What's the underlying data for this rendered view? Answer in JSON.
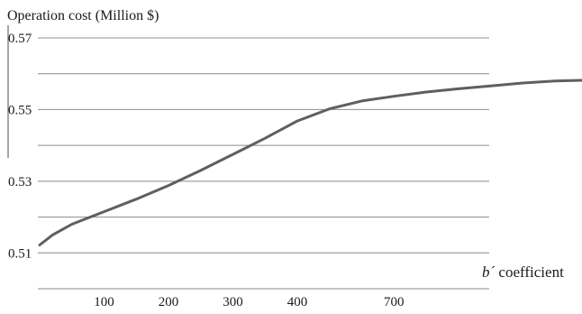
{
  "chart_data": {
    "type": "line",
    "title": "Operation cost (Million $)",
    "xlabel_italic": "b´",
    "xlabel_rest": " coefficient",
    "x_tick_labels": [
      "100",
      "200",
      "300",
      "400",
      "700"
    ],
    "y_ticks": [
      0.51,
      0.53,
      0.55,
      0.57
    ],
    "y_tick_labels": [
      "0.51",
      "0.53",
      "0.55",
      "0.57"
    ],
    "ylim": [
      0.5,
      0.57
    ],
    "y_grid_step": 0.01,
    "grid": "horizontal",
    "series": [
      {
        "color": "#5f5f5f",
        "points": [
          [
            0,
            0.5122
          ],
          [
            0.2,
            0.515
          ],
          [
            0.5,
            0.518
          ],
          [
            1.0,
            0.5215
          ],
          [
            1.5,
            0.525
          ],
          [
            2.0,
            0.5288
          ],
          [
            2.5,
            0.533
          ],
          [
            3.0,
            0.5375
          ],
          [
            3.5,
            0.542
          ],
          [
            4.0,
            0.5468
          ],
          [
            4.5,
            0.5502
          ],
          [
            5.0,
            0.5524
          ],
          [
            5.5,
            0.5537
          ],
          [
            6.0,
            0.5549
          ],
          [
            6.5,
            0.5558
          ],
          [
            7.0,
            0.5566
          ],
          [
            7.5,
            0.5574
          ],
          [
            8.0,
            0.558
          ],
          [
            8.5,
            0.5582
          ],
          [
            9.0,
            0.5581
          ]
        ]
      }
    ]
  }
}
